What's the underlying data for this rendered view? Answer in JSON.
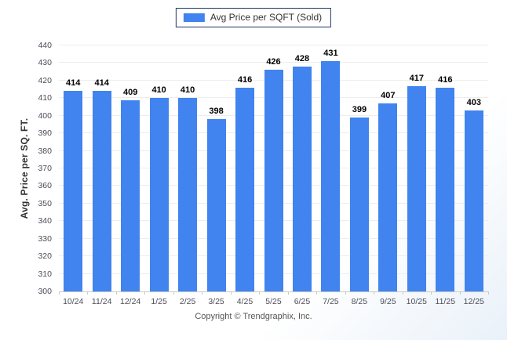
{
  "legend": {
    "label": "Avg Price per SQFT (Sold)",
    "swatch_color": "#4183ef"
  },
  "chart_data": {
    "type": "bar",
    "categories": [
      "10/24",
      "11/24",
      "12/24",
      "1/25",
      "2/25",
      "3/25",
      "4/25",
      "5/25",
      "6/25",
      "7/25",
      "8/25",
      "9/25",
      "10/25",
      "11/25",
      "12/25"
    ],
    "values": [
      414,
      414,
      409,
      410,
      410,
      398,
      416,
      426,
      428,
      431,
      399,
      407,
      417,
      416,
      403
    ],
    "title": "",
    "xlabel": "",
    "ylabel": "Avg. Price per SQ. FT.",
    "ylim": [
      300,
      440
    ],
    "ytick_step": 10,
    "grid": "horizontal",
    "legend_entries": [
      "Avg Price per SQFT (Sold)"
    ],
    "legend_position": "top-center",
    "bar_color": "#4183ef"
  },
  "colors": {
    "bar": "#4183ef",
    "gridline": "#ededed",
    "axis": "#c9c9c9",
    "legend_border": "#1f3864"
  },
  "footer": {
    "copyright": "Copyright © Trendgraphix, Inc."
  }
}
